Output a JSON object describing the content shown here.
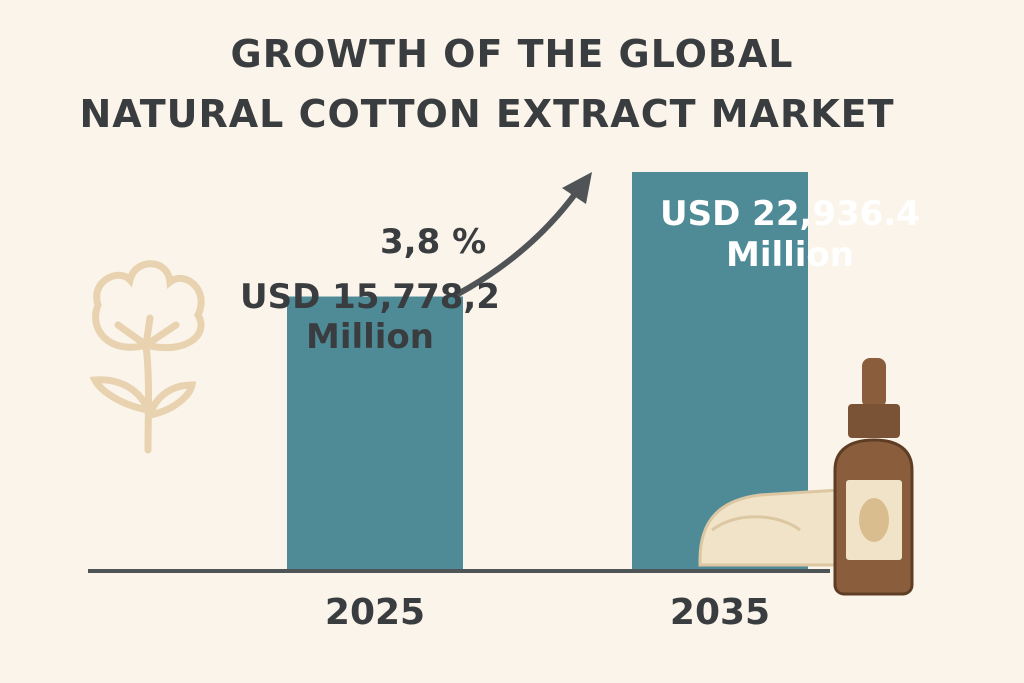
{
  "chart_data": {
    "type": "bar",
    "title": [
      "GROWTH OF THE GLOBAL",
      "NATURAL COTTON EXTRACT MARKET"
    ],
    "annotation": "3,8 %",
    "categories": [
      "2025",
      "2035"
    ],
    "values": [
      15778.2,
      22936.4
    ],
    "value_labels": [
      "USD 15,778,2 Million",
      "USD 22,936.4 Million"
    ],
    "color": "#4f8b96"
  }
}
